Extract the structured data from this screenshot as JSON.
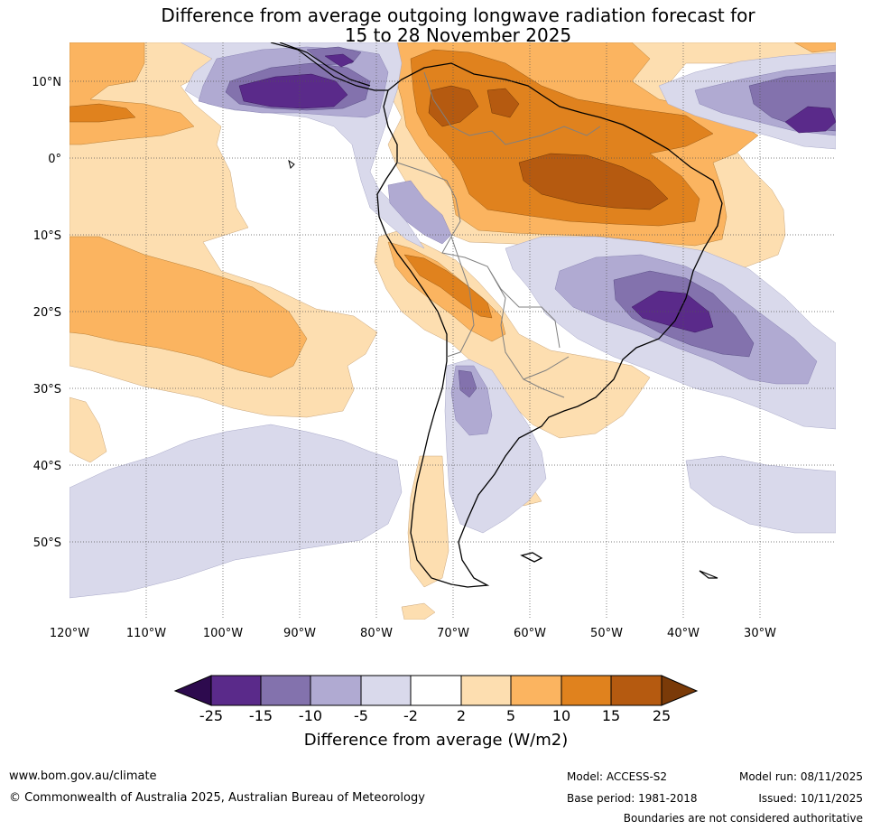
{
  "title": {
    "line1": "Difference from average outgoing longwave radiation forecast for",
    "line2": "15 to 28 November 2025"
  },
  "map": {
    "latitude_labels": [
      "10°N",
      "0°",
      "10°S",
      "20°S",
      "30°S",
      "40°S",
      "50°S"
    ],
    "longitude_labels": [
      "120°W",
      "110°W",
      "100°W",
      "90°W",
      "80°W",
      "70°W",
      "60°W",
      "50°W",
      "40°W",
      "30°W"
    ],
    "region": "South America and surrounding Pacific and Atlantic oceans",
    "extent": {
      "lon_min": -120,
      "lon_max": -20,
      "lat_min": -60,
      "lat_max": 15
    }
  },
  "legend": {
    "tick_labels": [
      "-25",
      "-15",
      "-10",
      "-5",
      "-2",
      "2",
      "5",
      "10",
      "15",
      "25"
    ],
    "label": "Difference from average (W/m2)",
    "colors": {
      "below_min": "#2d0a4e",
      "lt_-15": "#5a2a8a",
      "-15_-10": "#8372ad",
      "-10_-5": "#b0aad2",
      "-5_-2": "#d9d9eb",
      "-2_2": "#ffffff",
      "2_5": "#fddeb0",
      "5_10": "#fbb460",
      "10_15": "#e0821e",
      "15_25": "#b55a10",
      "above_max": "#7a3a08"
    }
  },
  "footer": {
    "website": "www.bom.gov.au/climate",
    "copyright": "© Commonwealth of Australia 2025, Australian Bureau of Meteorology",
    "model": "Model: ACCESS-S2",
    "base_period": "Base period: 1981-2018",
    "model_run": "Model run: 08/11/2025",
    "issued": "Issued: 10/11/2025",
    "disclaimer": "Boundaries are not considered authoritative"
  }
}
